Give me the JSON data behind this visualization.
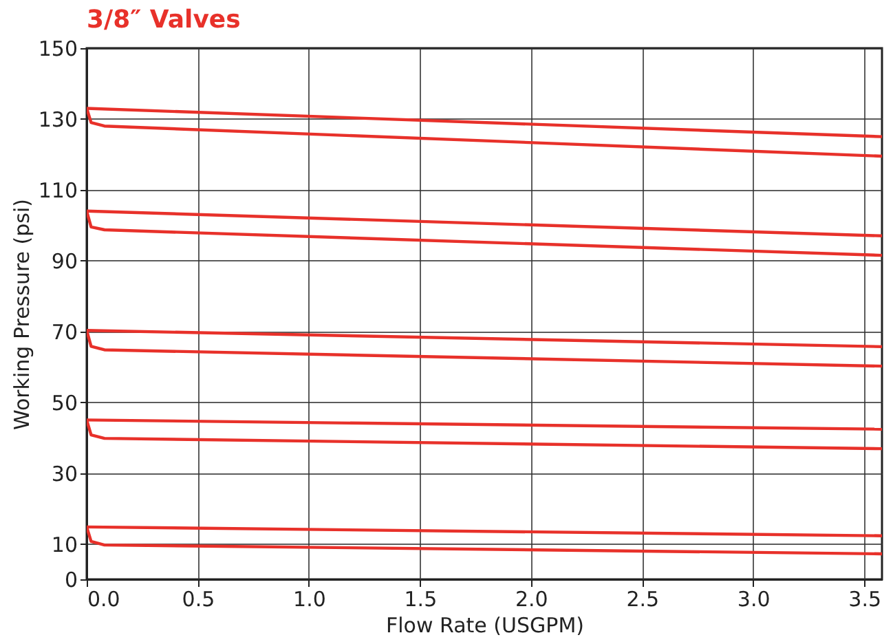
{
  "chart_data": {
    "type": "line",
    "title": "3/8″ Valves",
    "xlabel": "Flow Rate (USGPM)",
    "ylabel": "Working Pressure (psi)",
    "xlim": [
      0,
      3.58
    ],
    "xticks": [
      {
        "value": 0,
        "label": "0.0"
      },
      0.5,
      {
        "value": 1,
        "label": "1.0"
      },
      1.5,
      {
        "value": 2,
        "label": "2.0"
      },
      2.5,
      {
        "value": 3,
        "label": "3.0"
      },
      3.5
    ],
    "ylim": [
      0,
      150
    ],
    "yticks": [
      0,
      10,
      30,
      50,
      70,
      90,
      110,
      130,
      150
    ],
    "grid": true,
    "marker": "none",
    "line_style": "solid",
    "series": [
      {
        "color": "#e8312a",
        "x": [
          0,
          3.58
        ],
        "values": [
          133,
          125
        ]
      },
      {
        "color": "#e8312a",
        "x": [
          0,
          0.02,
          0.08,
          3.58
        ],
        "values": [
          133,
          129,
          128,
          119.5
        ]
      },
      {
        "color": "#e8312a",
        "x": [
          0,
          3.58
        ],
        "values": [
          104,
          97
        ]
      },
      {
        "color": "#e8312a",
        "x": [
          0,
          0.02,
          0.08,
          3.58
        ],
        "values": [
          104,
          99.5,
          98.7,
          91.5
        ]
      },
      {
        "color": "#e8312a",
        "x": [
          0,
          3.58
        ],
        "values": [
          70.3,
          65.7
        ]
      },
      {
        "color": "#e8312a",
        "x": [
          0,
          0.02,
          0.08,
          3.58
        ],
        "values": [
          70.3,
          65.8,
          64.8,
          60.2
        ]
      },
      {
        "color": "#e8312a",
        "x": [
          0,
          3.58
        ],
        "values": [
          45,
          42.4
        ]
      },
      {
        "color": "#e8312a",
        "x": [
          0,
          0.02,
          0.08,
          3.58
        ],
        "values": [
          45,
          40.8,
          39.8,
          36.9
        ]
      },
      {
        "color": "#e8312a",
        "x": [
          0,
          3.58
        ],
        "values": [
          14.8,
          12.3
        ]
      },
      {
        "color": "#e8312a",
        "x": [
          0,
          0.02,
          0.08,
          3.58
        ],
        "values": [
          14.8,
          10.7,
          9.7,
          7.2
        ]
      }
    ]
  }
}
